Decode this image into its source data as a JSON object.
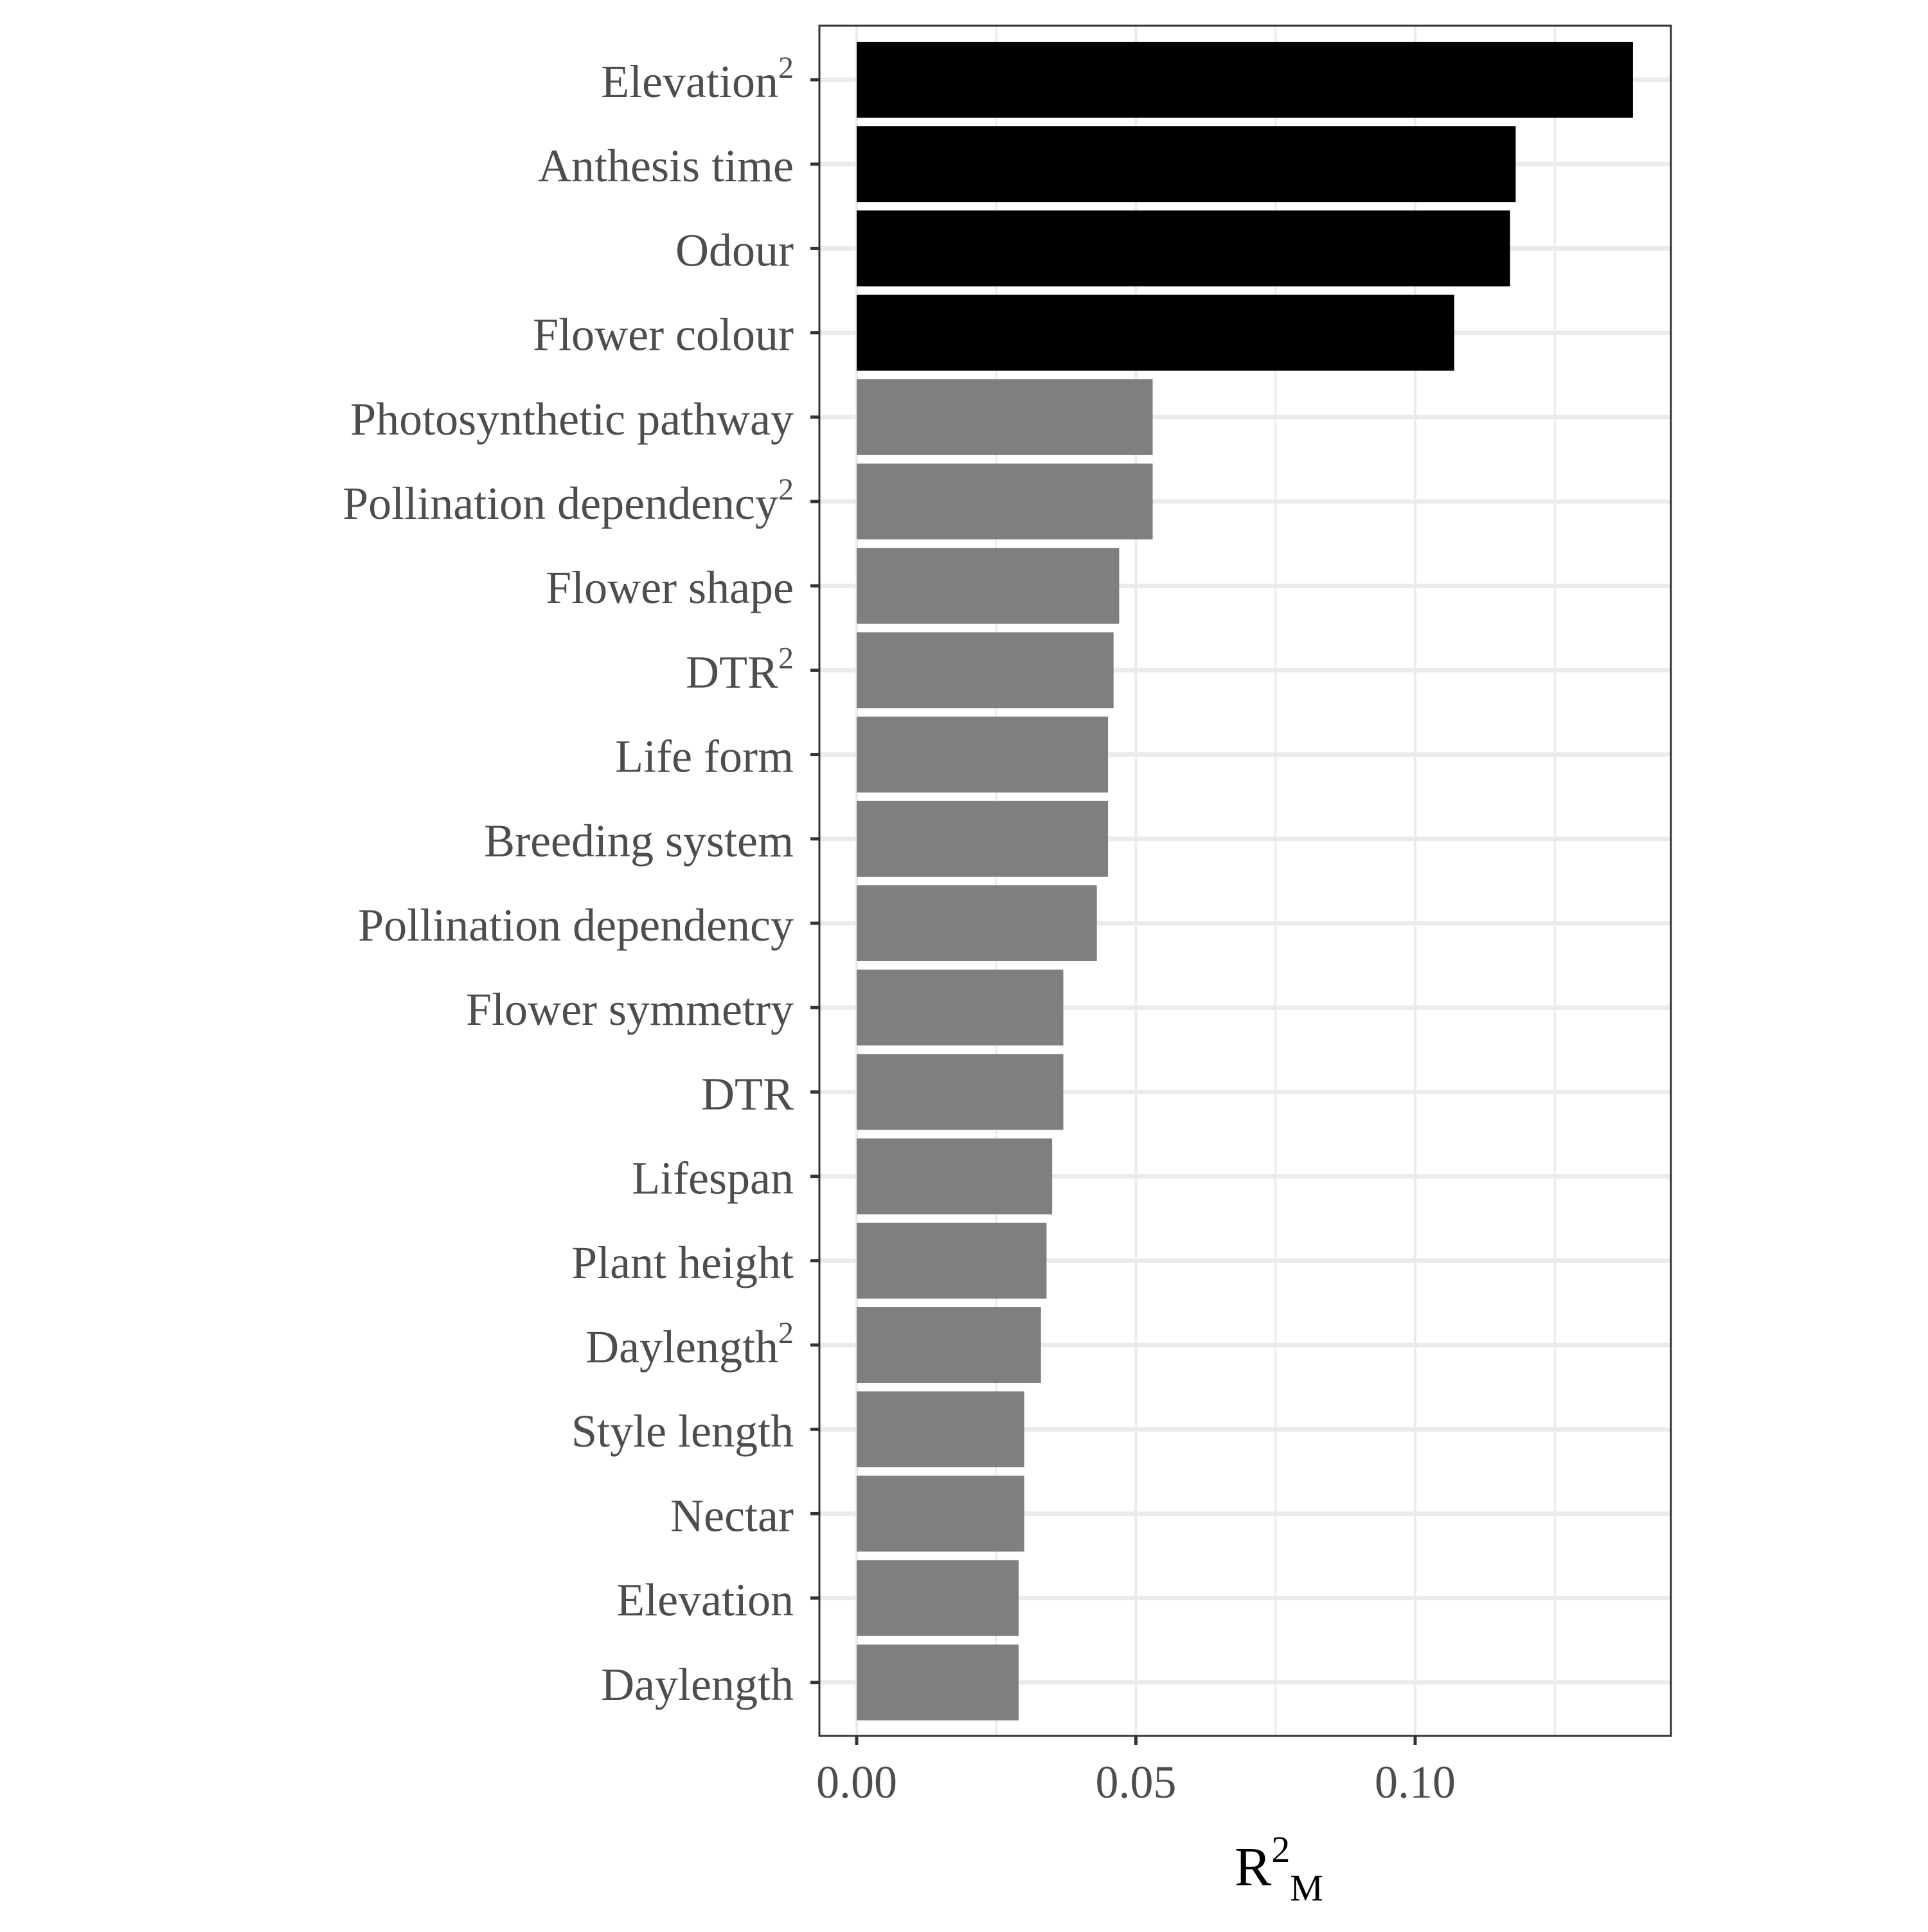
{
  "chart_data": {
    "type": "bar",
    "orientation": "horizontal",
    "xlabel": {
      "base": "R",
      "sup": "2",
      "sub": "M"
    },
    "xlim": [
      -0.0068,
      0.1398
    ],
    "xticks": [
      0.0,
      0.05,
      0.1
    ],
    "xtick_labels": [
      "0.00",
      "0.05",
      "0.10"
    ],
    "xgrid_minor": [
      0.025,
      0.075,
      0.125
    ],
    "grid": true,
    "legend": "none",
    "colors": {
      "highlight": "#000000",
      "other": "#7f7f7f",
      "grid": "#ebebeb",
      "frame": "#333333",
      "tick_label": "#4d4d4d",
      "axis_title": "#000000"
    },
    "categories": [
      {
        "label": "Elevation",
        "sup": "2",
        "value": 0.139,
        "highlight": true
      },
      {
        "label": "Anthesis time",
        "sup": "",
        "value": 0.118,
        "highlight": true
      },
      {
        "label": "Odour",
        "sup": "",
        "value": 0.117,
        "highlight": true
      },
      {
        "label": "Flower colour",
        "sup": "",
        "value": 0.107,
        "highlight": true
      },
      {
        "label": "Photosynthetic pathway",
        "sup": "",
        "value": 0.053,
        "highlight": false
      },
      {
        "label": "Pollination dependency",
        "sup": "2",
        "value": 0.053,
        "highlight": false
      },
      {
        "label": "Flower shape",
        "sup": "",
        "value": 0.047,
        "highlight": false
      },
      {
        "label": "DTR",
        "sup": "2",
        "value": 0.046,
        "highlight": false
      },
      {
        "label": "Life form",
        "sup": "",
        "value": 0.045,
        "highlight": false
      },
      {
        "label": "Breeding system",
        "sup": "",
        "value": 0.045,
        "highlight": false
      },
      {
        "label": "Pollination dependency",
        "sup": "",
        "value": 0.043,
        "highlight": false
      },
      {
        "label": "Flower symmetry",
        "sup": "",
        "value": 0.037,
        "highlight": false
      },
      {
        "label": "DTR",
        "sup": "",
        "value": 0.037,
        "highlight": false
      },
      {
        "label": "Lifespan",
        "sup": "",
        "value": 0.035,
        "highlight": false
      },
      {
        "label": "Plant height",
        "sup": "",
        "value": 0.034,
        "highlight": false
      },
      {
        "label": "Daylength",
        "sup": "2",
        "value": 0.033,
        "highlight": false
      },
      {
        "label": "Style length",
        "sup": "",
        "value": 0.03,
        "highlight": false
      },
      {
        "label": "Nectar",
        "sup": "",
        "value": 0.03,
        "highlight": false
      },
      {
        "label": "Elevation",
        "sup": "",
        "value": 0.029,
        "highlight": false
      },
      {
        "label": "Daylength",
        "sup": "",
        "value": 0.029,
        "highlight": false
      }
    ]
  }
}
